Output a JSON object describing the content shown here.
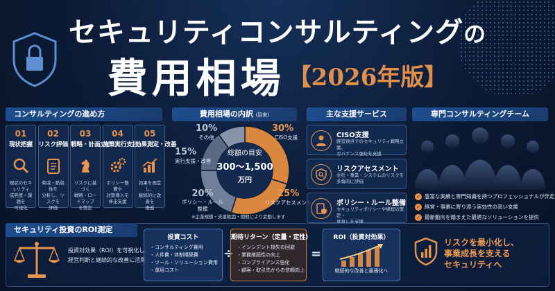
{
  "title": {
    "line1": "セキュリティコンサルティング",
    "line1_suffix": "の",
    "line2": "費用相場",
    "year": "【2026年版】"
  },
  "process": {
    "header": "コンサルティングの進め方",
    "steps": [
      {
        "num": "01",
        "title": "現状把握",
        "icon": "magnifier-icon",
        "desc": "現状のセキュリティ\n成熟度・課題を\n可視化"
      },
      {
        "num": "02",
        "title": "リスク評価",
        "icon": "clipboard-icon",
        "desc": "脅威・脆弱性を\n分析し、リスクを\n評価"
      },
      {
        "num": "03",
        "title": "戦略・計画立案",
        "icon": "chess-knight-icon",
        "desc": "リスクに基づく\n戦略・ロードマップ\nを策定"
      },
      {
        "num": "04",
        "title": "施策実行支援",
        "icon": "gears-icon",
        "desc": "ポリシー整備や\n対策導入を\n伴走支援"
      },
      {
        "num": "05",
        "title": "効果測定・改善",
        "icon": "chart-icon",
        "desc": "効果を測定し、\n継続的に改善を\n推進"
      }
    ]
  },
  "breakdown": {
    "header": "費用相場の内訳",
    "header_note": "(目安)",
    "center_l1": "総額の目安",
    "center_l2": "300～1,500",
    "center_l3": "万円",
    "slices": [
      {
        "pct": "30%",
        "label": "CISO支援",
        "value": 30,
        "color": "#d9873f"
      },
      {
        "pct": "25%",
        "label": "リスクアセスメント",
        "value": 25,
        "color": "#d9873f"
      },
      {
        "pct": "20%",
        "label": "ポリシー・ルール\n整備",
        "value": 20,
        "color": "#6e7f99"
      },
      {
        "pct": "15%",
        "label": "実行支援・改善",
        "value": 15,
        "color": "#5a6a85"
      },
      {
        "pct": "10%",
        "label": "その他",
        "value": 10,
        "color": "#8592a8"
      }
    ],
    "footnote": "※企業規模・支援範囲・期間により変動します"
  },
  "services": {
    "header": "主な支援サービス",
    "items": [
      {
        "name": "CISO支援",
        "icon": "person-icon",
        "desc": "経営視点でのセキュリティ戦略立案、\nガバナンス強化を支援"
      },
      {
        "name": "リスクアセスメント",
        "icon": "shield-search-icon",
        "desc": "全社・事業・システムのリスクを\n多角的に評価"
      },
      {
        "name": "ポリシー・ルール整備",
        "icon": "document-shield-icon",
        "desc": "セキュリティポリシーや規程の策定・\n見直しを支援"
      }
    ]
  },
  "team": {
    "header": "専門コンサルティングチーム",
    "bullets": [
      "豊富な実績と専門知識を持つプロフェッショナルが伴走",
      "経営・事業に寄り添う実効性の高い支援",
      "最新動向を踏まえた最適なソリューションを提供"
    ]
  },
  "roi": {
    "header": "セキュリティ投資のROI測定",
    "desc": "投資対効果（ROI）を可視化し、\n経営判断と継続的な改善に活用",
    "cost": {
      "title": "投資コスト",
      "items": [
        "コンサルティング費用",
        "人件費・体制構築費",
        "ツール・ソリューション費用",
        "運用コスト"
      ]
    },
    "divide": "÷",
    "returns": {
      "title": "期待リターン（定量・定性）",
      "items": [
        "インシデント損失の回避",
        "業務継続性の向上",
        "コンプライアンス強化",
        "顧客・取引先からの信頼向上"
      ]
    },
    "equals": "=",
    "roi_box": {
      "title": "ROI（投資対効果）",
      "sub": "継続的な改善と最適化へ"
    },
    "slogan": "リスクを最小化し、\n事業成長を支える\nセキュリティへ"
  }
}
